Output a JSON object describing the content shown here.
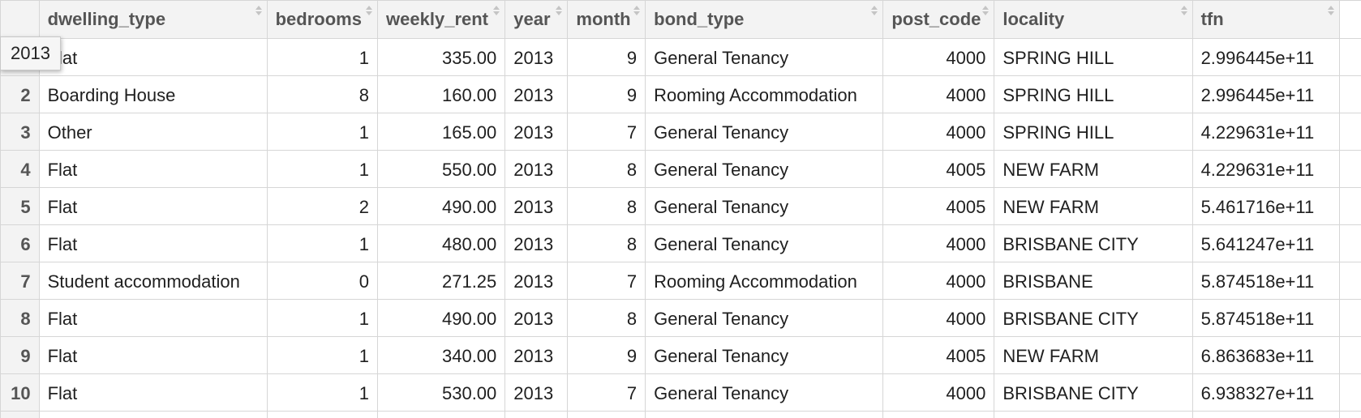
{
  "columns": [
    {
      "key": "dwelling_type",
      "label": "dwelling_type"
    },
    {
      "key": "bedrooms",
      "label": "bedrooms"
    },
    {
      "key": "weekly_rent",
      "label": "weekly_rent"
    },
    {
      "key": "year",
      "label": "year"
    },
    {
      "key": "month",
      "label": "month"
    },
    {
      "key": "bond_type",
      "label": "bond_type"
    },
    {
      "key": "post_code",
      "label": "post_code"
    },
    {
      "key": "locality",
      "label": "locality"
    },
    {
      "key": "tfn",
      "label": "tfn"
    }
  ],
  "rows": [
    {
      "num": "1",
      "dwelling_type": "Flat",
      "bedrooms": "1",
      "weekly_rent": "335.00",
      "year": "2013",
      "month": "9",
      "bond_type": "General Tenancy",
      "post_code": "4000",
      "locality": "SPRING HILL",
      "tfn": "2.996445e+11"
    },
    {
      "num": "2",
      "dwelling_type": "Boarding House",
      "bedrooms": "8",
      "weekly_rent": "160.00",
      "year": "2013",
      "month": "9",
      "bond_type": "Rooming Accommodation",
      "post_code": "4000",
      "locality": "SPRING HILL",
      "tfn": "2.996445e+11"
    },
    {
      "num": "3",
      "dwelling_type": "Other",
      "bedrooms": "1",
      "weekly_rent": "165.00",
      "year": "2013",
      "month": "7",
      "bond_type": "General Tenancy",
      "post_code": "4000",
      "locality": "SPRING HILL",
      "tfn": "4.229631e+11"
    },
    {
      "num": "4",
      "dwelling_type": "Flat",
      "bedrooms": "1",
      "weekly_rent": "550.00",
      "year": "2013",
      "month": "8",
      "bond_type": "General Tenancy",
      "post_code": "4005",
      "locality": "NEW FARM",
      "tfn": "4.229631e+11"
    },
    {
      "num": "5",
      "dwelling_type": "Flat",
      "bedrooms": "2",
      "weekly_rent": "490.00",
      "year": "2013",
      "month": "8",
      "bond_type": "General Tenancy",
      "post_code": "4005",
      "locality": "NEW FARM",
      "tfn": "5.461716e+11"
    },
    {
      "num": "6",
      "dwelling_type": "Flat",
      "bedrooms": "1",
      "weekly_rent": "480.00",
      "year": "2013",
      "month": "8",
      "bond_type": "General Tenancy",
      "post_code": "4000",
      "locality": "BRISBANE CITY",
      "tfn": "5.641247e+11"
    },
    {
      "num": "7",
      "dwelling_type": "Student accommodation",
      "bedrooms": "0",
      "weekly_rent": "271.25",
      "year": "2013",
      "month": "7",
      "bond_type": "Rooming Accommodation",
      "post_code": "4000",
      "locality": "BRISBANE",
      "tfn": "5.874518e+11"
    },
    {
      "num": "8",
      "dwelling_type": "Flat",
      "bedrooms": "1",
      "weekly_rent": "490.00",
      "year": "2013",
      "month": "8",
      "bond_type": "General Tenancy",
      "post_code": "4000",
      "locality": "BRISBANE CITY",
      "tfn": "5.874518e+11"
    },
    {
      "num": "9",
      "dwelling_type": "Flat",
      "bedrooms": "1",
      "weekly_rent": "340.00",
      "year": "2013",
      "month": "9",
      "bond_type": "General Tenancy",
      "post_code": "4005",
      "locality": "NEW FARM",
      "tfn": "6.863683e+11"
    },
    {
      "num": "10",
      "dwelling_type": "Flat",
      "bedrooms": "1",
      "weekly_rent": "530.00",
      "year": "2013",
      "month": "7",
      "bond_type": "General Tenancy",
      "post_code": "4000",
      "locality": "BRISBANE CITY",
      "tfn": "6.938327e+11"
    }
  ],
  "tooltip": {
    "text": "2013"
  }
}
